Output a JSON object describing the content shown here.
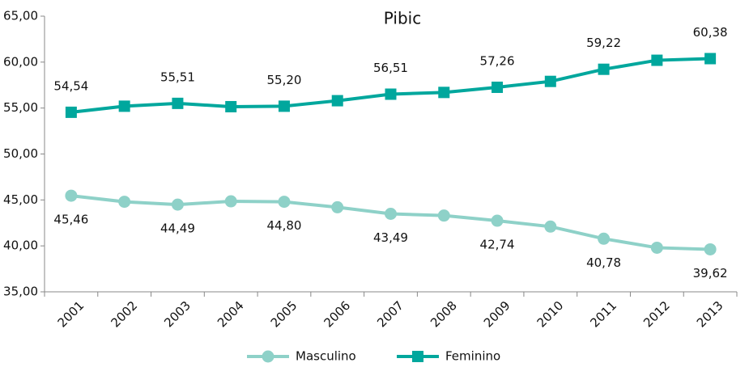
{
  "chart_data": {
    "type": "line",
    "title": "Pibic",
    "categories": [
      "2001",
      "2002",
      "2003",
      "2004",
      "2005",
      "2006",
      "2007",
      "2008",
      "2009",
      "2010",
      "2011",
      "2012",
      "2013"
    ],
    "series": [
      {
        "name": "Masculino",
        "color": "#8ed1c8",
        "marker": "circle",
        "values": [
          45.46,
          44.8,
          44.49,
          44.85,
          44.8,
          44.2,
          43.49,
          43.3,
          42.74,
          42.1,
          40.78,
          39.8,
          39.62
        ],
        "value_labels": [
          "45,46",
          null,
          "44,49",
          null,
          "44,80",
          null,
          "43,49",
          null,
          "42,74",
          null,
          "40,78",
          null,
          "39,62"
        ]
      },
      {
        "name": "Feminino",
        "color": "#00a79d",
        "marker": "square",
        "values": [
          54.54,
          55.2,
          55.51,
          55.15,
          55.2,
          55.8,
          56.51,
          56.7,
          57.26,
          57.9,
          59.22,
          60.2,
          60.38
        ],
        "value_labels": [
          "54,54",
          null,
          "55,51",
          null,
          "55,20",
          null,
          "56,51",
          null,
          "57,26",
          null,
          "59,22",
          null,
          "60,38"
        ]
      }
    ],
    "ylim": [
      35,
      65
    ],
    "yticks": [
      {
        "value": 35,
        "label": "35,00"
      },
      {
        "value": 40,
        "label": "40,00"
      },
      {
        "value": 45,
        "label": "45,00"
      },
      {
        "value": 50,
        "label": "50,00"
      },
      {
        "value": 55,
        "label": "55,00"
      },
      {
        "value": 60,
        "label": "60,00"
      },
      {
        "value": 65,
        "label": "65,00"
      }
    ],
    "grid": false,
    "legend": "bottom"
  }
}
